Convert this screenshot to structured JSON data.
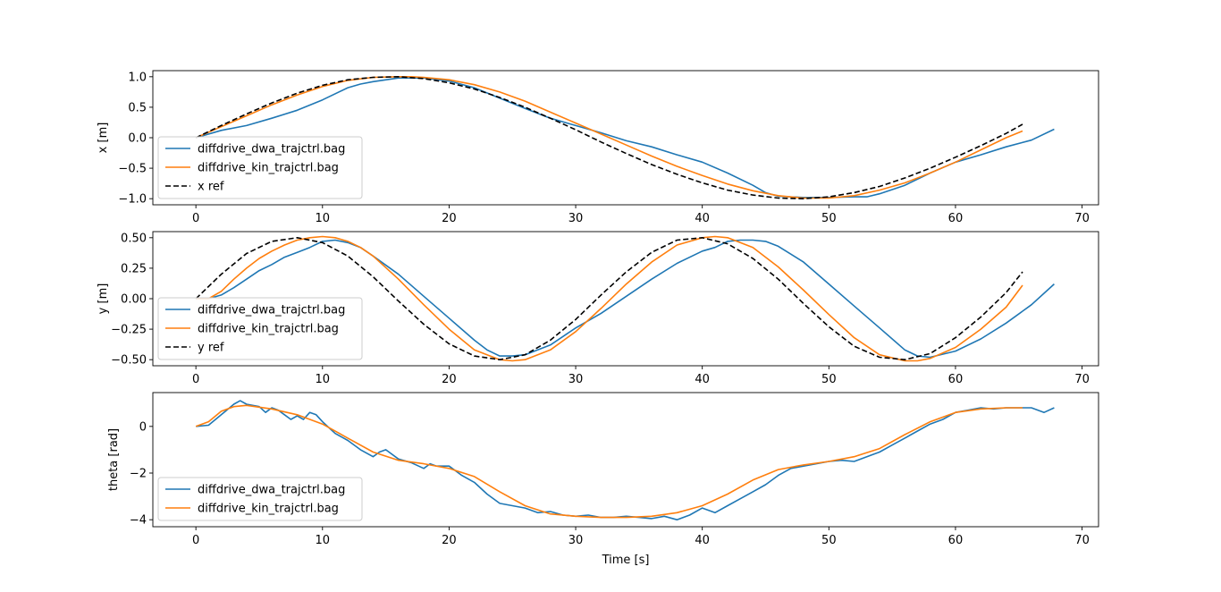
{
  "figure": {
    "xlabel": "Time [s]"
  },
  "colors": {
    "dwa": "#1f77b4",
    "kin": "#ff7f0e",
    "ref": "#000000"
  },
  "chart_data": [
    {
      "type": "line",
      "ylabel": "x [m]",
      "xlim": [
        -3.4,
        71.3
      ],
      "ylim": [
        -1.1,
        1.1
      ],
      "xticks": [
        0,
        10,
        20,
        30,
        40,
        50,
        60,
        70
      ],
      "yticks": [
        {
          "v": 1.0,
          "label": "1.0"
        },
        {
          "v": 0.5,
          "label": "0.5"
        },
        {
          "v": 0.0,
          "label": "0.0"
        },
        {
          "v": -0.5,
          "label": "−0.5"
        },
        {
          "v": -1.0,
          "label": "−1.0"
        }
      ],
      "legend_position": "lower-left",
      "series": [
        {
          "key": "dwa",
          "name": "diffdrive_dwa_trajctrl.bag",
          "style": "solid",
          "x": [
            0,
            2,
            4,
            6,
            8,
            10,
            12,
            13,
            14,
            16,
            18,
            20,
            22,
            24,
            26,
            28,
            30,
            32,
            34,
            36,
            38,
            40,
            42,
            44,
            45,
            46,
            48,
            50,
            52,
            53,
            54,
            56,
            58,
            60,
            62,
            64,
            66,
            67.8
          ],
          "y": [
            0.0,
            0.12,
            0.2,
            0.32,
            0.45,
            0.62,
            0.82,
            0.88,
            0.92,
            0.98,
            0.98,
            0.93,
            0.82,
            0.65,
            0.48,
            0.32,
            0.2,
            0.08,
            -0.05,
            -0.15,
            -0.28,
            -0.4,
            -0.58,
            -0.78,
            -0.9,
            -0.96,
            -0.98,
            -0.98,
            -0.97,
            -0.97,
            -0.92,
            -0.78,
            -0.58,
            -0.4,
            -0.28,
            -0.15,
            -0.04,
            0.14
          ]
        },
        {
          "key": "kin",
          "name": "diffdrive_kin_trajctrl.bag",
          "style": "solid",
          "x": [
            0,
            2,
            4,
            6,
            8,
            10,
            12,
            14,
            16,
            17,
            18,
            20,
            22,
            24,
            26,
            28,
            30,
            32,
            34,
            36,
            38,
            40,
            42,
            44,
            46,
            48,
            50,
            52,
            54,
            56,
            58,
            60,
            62,
            64,
            65.3
          ],
          "y": [
            0.0,
            0.18,
            0.36,
            0.54,
            0.7,
            0.84,
            0.94,
            0.99,
            1.0,
            1.0,
            0.99,
            0.95,
            0.87,
            0.75,
            0.6,
            0.42,
            0.24,
            0.06,
            -0.12,
            -0.3,
            -0.47,
            -0.62,
            -0.76,
            -0.87,
            -0.95,
            -0.99,
            -0.99,
            -0.95,
            -0.86,
            -0.74,
            -0.58,
            -0.4,
            -0.2,
            0.0,
            0.11
          ]
        },
        {
          "key": "ref",
          "name": "x ref",
          "style": "dashed",
          "x": [
            0,
            2,
            4,
            6,
            8,
            10,
            12,
            14,
            16,
            18,
            20,
            22,
            24,
            26,
            28,
            30,
            32,
            34,
            36,
            38,
            40,
            42,
            44,
            46,
            48,
            50,
            52,
            54,
            56,
            58,
            60,
            62,
            64,
            65.3
          ],
          "y": [
            0.0,
            0.2,
            0.39,
            0.57,
            0.73,
            0.86,
            0.95,
            0.99,
            1.0,
            0.97,
            0.9,
            0.8,
            0.66,
            0.5,
            0.32,
            0.13,
            -0.07,
            -0.26,
            -0.44,
            -0.6,
            -0.74,
            -0.86,
            -0.94,
            -0.99,
            -1.0,
            -0.97,
            -0.9,
            -0.8,
            -0.66,
            -0.5,
            -0.32,
            -0.13,
            0.07,
            0.22
          ]
        }
      ]
    },
    {
      "type": "line",
      "ylabel": "y [m]",
      "xlim": [
        -3.4,
        71.3
      ],
      "ylim": [
        -0.55,
        0.55
      ],
      "xticks": [
        0,
        10,
        20,
        30,
        40,
        50,
        60,
        70
      ],
      "yticks": [
        {
          "v": 0.5,
          "label": "0.50"
        },
        {
          "v": 0.25,
          "label": "0.25"
        },
        {
          "v": 0.0,
          "label": "0.00"
        },
        {
          "v": -0.25,
          "label": "−0.25"
        },
        {
          "v": -0.5,
          "label": "−0.50"
        }
      ],
      "legend_position": "lower-left",
      "series": [
        {
          "key": "dwa",
          "name": "diffdrive_dwa_trajctrl.bag",
          "style": "solid",
          "x": [
            0,
            1,
            2,
            3,
            4,
            5,
            6,
            7,
            8,
            9,
            10,
            11,
            12,
            13,
            14,
            16,
            18,
            20,
            22,
            23,
            24,
            25,
            26,
            28,
            30,
            32,
            34,
            36,
            38,
            40,
            41,
            42,
            43,
            44,
            45,
            46,
            48,
            50,
            52,
            54,
            56,
            57,
            58,
            60,
            62,
            64,
            66,
            67.8
          ],
          "y": [
            0.0,
            0.0,
            0.03,
            0.09,
            0.16,
            0.23,
            0.28,
            0.34,
            0.38,
            0.42,
            0.47,
            0.48,
            0.46,
            0.42,
            0.35,
            0.2,
            0.02,
            -0.16,
            -0.34,
            -0.42,
            -0.47,
            -0.47,
            -0.46,
            -0.38,
            -0.24,
            -0.12,
            0.02,
            0.16,
            0.29,
            0.39,
            0.42,
            0.47,
            0.48,
            0.48,
            0.47,
            0.43,
            0.3,
            0.12,
            -0.06,
            -0.24,
            -0.42,
            -0.47,
            -0.48,
            -0.43,
            -0.33,
            -0.2,
            -0.05,
            0.12
          ]
        },
        {
          "key": "kin",
          "name": "diffdrive_kin_trajctrl.bag",
          "style": "solid",
          "x": [
            0,
            1,
            2,
            3,
            4,
            5,
            6,
            7,
            8,
            9,
            10,
            11,
            12,
            13,
            14,
            16,
            18,
            20,
            22,
            24,
            25,
            26,
            28,
            30,
            32,
            34,
            36,
            38,
            40,
            41,
            42,
            44,
            46,
            48,
            50,
            52,
            54,
            56,
            57,
            58,
            60,
            62,
            64,
            65.3
          ],
          "y": [
            0.0,
            0.0,
            0.06,
            0.16,
            0.25,
            0.33,
            0.39,
            0.44,
            0.48,
            0.5,
            0.51,
            0.5,
            0.47,
            0.42,
            0.35,
            0.16,
            -0.05,
            -0.25,
            -0.42,
            -0.5,
            -0.51,
            -0.5,
            -0.42,
            -0.27,
            -0.08,
            0.12,
            0.3,
            0.44,
            0.5,
            0.51,
            0.5,
            0.42,
            0.26,
            0.07,
            -0.13,
            -0.32,
            -0.46,
            -0.51,
            -0.51,
            -0.49,
            -0.4,
            -0.25,
            -0.07,
            0.11
          ]
        },
        {
          "key": "ref",
          "name": "y ref",
          "style": "dashed",
          "x": [
            0,
            2,
            4,
            6,
            8,
            10,
            12,
            14,
            16,
            18,
            20,
            22,
            24,
            26,
            28,
            30,
            32,
            34,
            36,
            38,
            40,
            42,
            44,
            46,
            48,
            50,
            52,
            54,
            56,
            58,
            60,
            62,
            64,
            65.3
          ],
          "y": [
            0.0,
            0.2,
            0.37,
            0.47,
            0.5,
            0.46,
            0.35,
            0.18,
            -0.02,
            -0.21,
            -0.37,
            -0.47,
            -0.5,
            -0.46,
            -0.34,
            -0.17,
            0.03,
            0.22,
            0.38,
            0.48,
            0.5,
            0.45,
            0.33,
            0.16,
            -0.04,
            -0.23,
            -0.39,
            -0.48,
            -0.5,
            -0.45,
            -0.32,
            -0.15,
            0.05,
            0.22
          ]
        }
      ]
    },
    {
      "type": "line",
      "ylabel": "theta [rad]",
      "xlim": [
        -3.4,
        71.3
      ],
      "ylim": [
        -4.3,
        1.45
      ],
      "xticks": [
        0,
        10,
        20,
        30,
        40,
        50,
        60,
        70
      ],
      "yticks": [
        {
          "v": 0,
          "label": "0"
        },
        {
          "v": -2,
          "label": "−2"
        },
        {
          "v": -4,
          "label": "−4"
        }
      ],
      "legend_position": "lower-left",
      "series": [
        {
          "key": "dwa",
          "name": "diffdrive_dwa_trajctrl.bag",
          "style": "solid",
          "x": [
            0,
            1,
            2,
            3,
            3.5,
            4,
            5,
            5.5,
            6,
            6.5,
            7,
            7.5,
            8,
            8.5,
            9,
            9.5,
            10,
            11,
            12,
            13,
            14,
            14.5,
            15,
            16,
            17,
            18,
            18.5,
            19,
            20,
            21,
            22,
            23,
            24,
            25,
            26,
            27,
            28,
            29,
            30,
            31,
            32,
            33,
            34,
            35,
            36,
            37,
            38,
            39,
            40,
            41,
            42,
            43,
            44,
            45,
            46,
            47,
            48,
            49,
            50,
            51,
            52,
            53,
            54,
            55,
            56,
            57,
            58,
            59,
            60,
            61,
            62,
            63,
            64,
            65,
            66,
            67,
            67.8
          ],
          "y": [
            0.0,
            0.05,
            0.5,
            0.95,
            1.1,
            0.95,
            0.85,
            0.6,
            0.8,
            0.7,
            0.5,
            0.3,
            0.45,
            0.3,
            0.6,
            0.5,
            0.2,
            -0.3,
            -0.6,
            -1.0,
            -1.3,
            -1.1,
            -1.0,
            -1.4,
            -1.55,
            -1.8,
            -1.6,
            -1.7,
            -1.7,
            -2.1,
            -2.4,
            -2.9,
            -3.3,
            -3.4,
            -3.5,
            -3.7,
            -3.65,
            -3.8,
            -3.85,
            -3.8,
            -3.9,
            -3.9,
            -3.85,
            -3.9,
            -3.95,
            -3.85,
            -4.0,
            -3.8,
            -3.5,
            -3.7,
            -3.4,
            -3.1,
            -2.8,
            -2.5,
            -2.1,
            -1.8,
            -1.7,
            -1.6,
            -1.5,
            -1.45,
            -1.5,
            -1.3,
            -1.1,
            -0.8,
            -0.5,
            -0.2,
            0.1,
            0.3,
            0.6,
            0.7,
            0.8,
            0.75,
            0.8,
            0.8,
            0.8,
            0.6,
            0.8
          ]
        },
        {
          "key": "kin",
          "name": "diffdrive_kin_trajctrl.bag",
          "style": "solid",
          "x": [
            0,
            1,
            2,
            3,
            4,
            6,
            8,
            10,
            12,
            14,
            16,
            18,
            20,
            22,
            24,
            26,
            28,
            30,
            32,
            34,
            36,
            38,
            40,
            42,
            44,
            46,
            48,
            50,
            52,
            54,
            56,
            58,
            60,
            62,
            64,
            65.3
          ],
          "y": [
            0.0,
            0.2,
            0.65,
            0.85,
            0.9,
            0.75,
            0.5,
            0.1,
            -0.5,
            -1.1,
            -1.45,
            -1.6,
            -1.8,
            -2.15,
            -2.8,
            -3.4,
            -3.75,
            -3.85,
            -3.9,
            -3.9,
            -3.85,
            -3.7,
            -3.4,
            -2.9,
            -2.3,
            -1.85,
            -1.65,
            -1.5,
            -1.3,
            -0.95,
            -0.35,
            0.2,
            0.6,
            0.75,
            0.8,
            0.8
          ]
        }
      ]
    }
  ]
}
